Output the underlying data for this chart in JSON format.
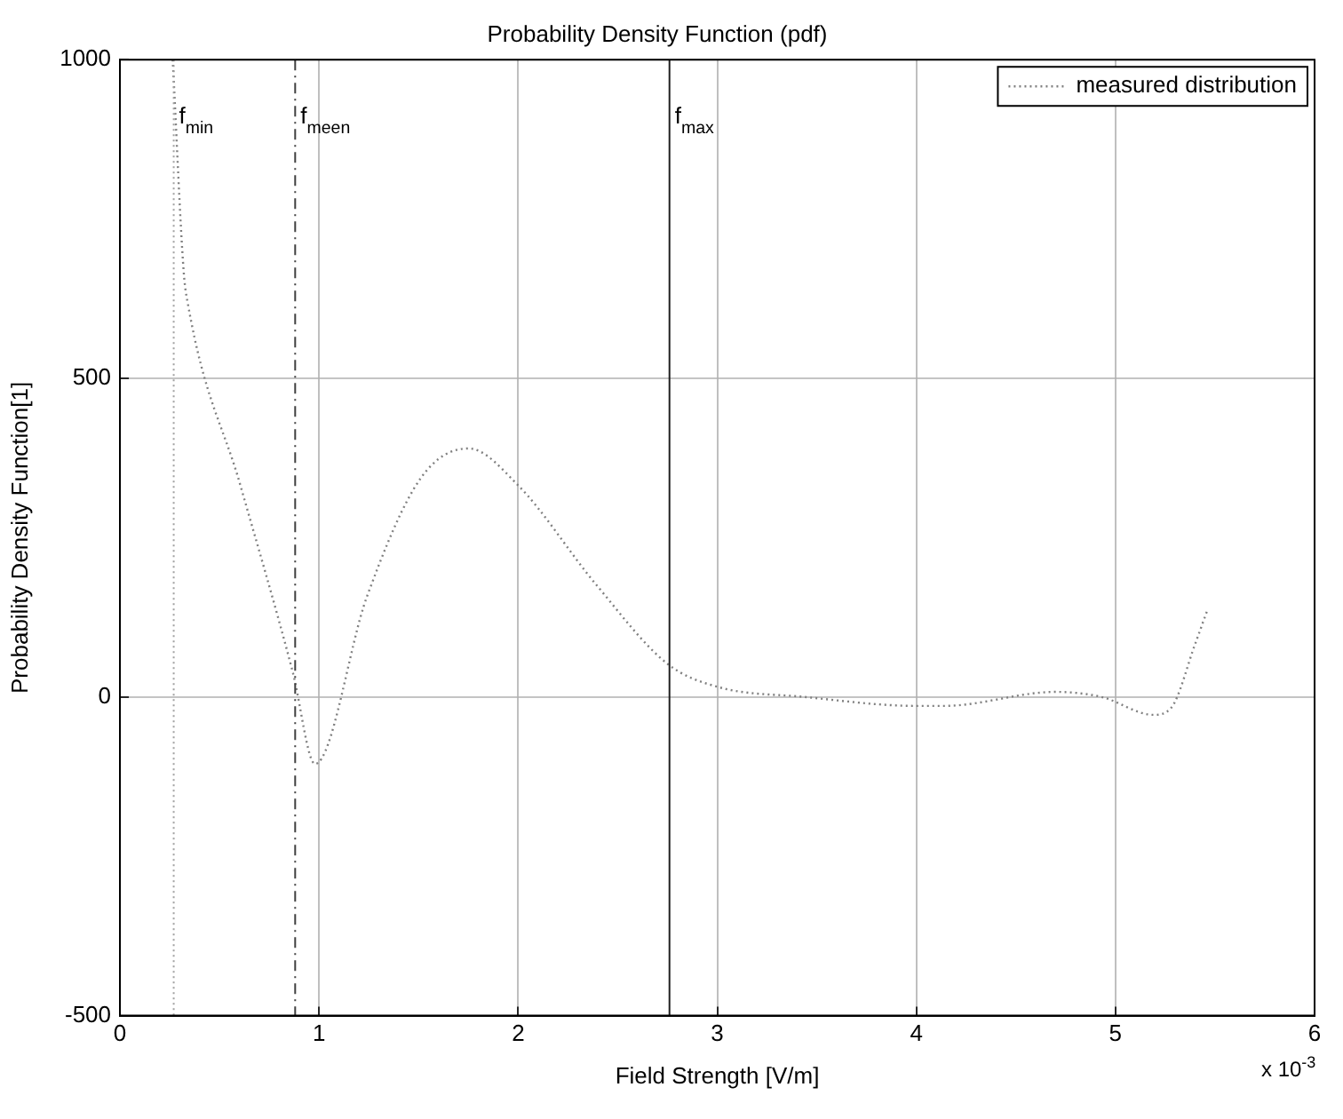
{
  "chart_data": {
    "type": "line",
    "title": "Probability Density Function (pdf)",
    "xlabel": "Field Strength [V/m]",
    "ylabel": "Probability Density Function[1]",
    "annotations": [
      "x 10$^{-3}$"
    ],
    "x": [
      0.265,
      0.32,
      0.34,
      0.605,
      0.868,
      0.98,
      1.24,
      1.51,
      1.75,
      2.0,
      2.39,
      2.75,
      3.0,
      3.44,
      4.0,
      4.14,
      4.7,
      4.93,
      5.19,
      5.28,
      5.4,
      5.46
    ],
    "series": [
      {
        "name": "measured distribution",
        "color": "#808080",
        "values": [
          1000,
          668,
          619,
          332,
          39,
          -105,
          157,
          343,
          390,
          332,
          177,
          52,
          16,
          0,
          -14,
          -14,
          8,
          0,
          -28,
          -17,
          83,
          135
        ]
      }
    ],
    "xlim": [
      0,
      6
    ],
    "xticks": [
      0,
      1,
      2,
      3,
      4,
      5,
      6
    ],
    "ylim": [
      -500,
      1000
    ],
    "yticks": [
      -500,
      0,
      500,
      1000
    ],
    "ref_lines": [
      {
        "axis": "x",
        "value": 0.27,
        "label": "f$_{min}$",
        "color": "#a0a0a0",
        "line_style": "dotted"
      },
      {
        "axis": "x",
        "value": 0.88,
        "label": "f$_{meen}$",
        "color": "#404040",
        "line_style": "dashed"
      },
      {
        "axis": "x",
        "value": 2.76,
        "label": "f$_{max}$",
        "color": "#202020",
        "line_style": "solid"
      }
    ],
    "grid": true,
    "legend": "top right",
    "line_style": "dotted",
    "marker": "none"
  }
}
